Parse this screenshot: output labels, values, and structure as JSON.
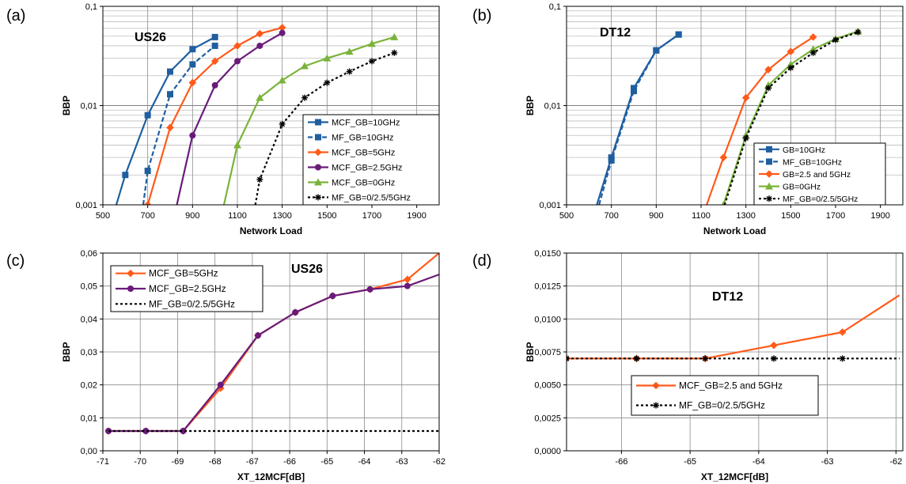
{
  "chart_data": [
    {
      "panel": "(a)",
      "type": "line",
      "title": "US26",
      "xlabel": "Network Load",
      "ylabel": "BBP",
      "yscale": "log",
      "xlim": [
        500,
        2000
      ],
      "ylim": [
        0.001,
        0.1
      ],
      "x_ticks": [
        "500",
        "700",
        "900",
        "1100",
        "1300",
        "1500",
        "1700",
        "1900"
      ],
      "y_ticks": [
        "0,001",
        "0,01",
        "0,1"
      ],
      "grid": true,
      "legend": "bottom-right",
      "series": [
        {
          "name": "MCF_GB=10GHz",
          "color": "#1f5fa0",
          "dash": "solid",
          "marker": "square",
          "x": [
            560,
            600,
            700,
            800,
            900,
            1000
          ],
          "y": [
            0.001,
            0.002,
            0.008,
            0.022,
            0.037,
            0.049
          ],
          "marked": [
            false,
            true,
            true,
            true,
            true,
            true
          ]
        },
        {
          "name": "MF_GB=10GHz",
          "color": "#1f5fa0",
          "dash": "dash",
          "marker": "square",
          "x": [
            680,
            700,
            800,
            900,
            1000
          ],
          "y": [
            0.001,
            0.0022,
            0.013,
            0.026,
            0.04
          ],
          "marked": [
            false,
            true,
            true,
            true,
            true
          ]
        },
        {
          "name": "MCF_GB=5GHz",
          "color": "#ff5a1a",
          "dash": "solid",
          "marker": "diamond",
          "x": [
            700,
            800,
            900,
            1000,
            1100,
            1200,
            1300
          ],
          "y": [
            0.001,
            0.006,
            0.017,
            0.028,
            0.04,
            0.053,
            0.061
          ],
          "marked": [
            true,
            true,
            true,
            true,
            true,
            true,
            true
          ]
        },
        {
          "name": "MCF_GB=2.5GHz",
          "color": "#6a1b7a",
          "dash": "solid",
          "marker": "circle",
          "x": [
            830,
            900,
            1000,
            1100,
            1200,
            1300
          ],
          "y": [
            0.001,
            0.005,
            0.016,
            0.028,
            0.04,
            0.054
          ],
          "marked": [
            false,
            true,
            true,
            true,
            true,
            true
          ]
        },
        {
          "name": "MCF_GB=0GHz",
          "color": "#7bb33a",
          "dash": "solid",
          "marker": "triangle",
          "x": [
            1040,
            1100,
            1200,
            1300,
            1400,
            1500,
            1600,
            1700,
            1800
          ],
          "y": [
            0.001,
            0.004,
            0.012,
            0.018,
            0.025,
            0.03,
            0.035,
            0.042,
            0.049
          ],
          "marked": [
            false,
            true,
            true,
            true,
            true,
            true,
            true,
            true,
            true
          ]
        },
        {
          "name": "MF_GB=0/2.5/5GHz",
          "color": "#000000",
          "dash": "dot",
          "marker": "asterisk",
          "x": [
            1180,
            1200,
            1300,
            1400,
            1500,
            1600,
            1700,
            1800
          ],
          "y": [
            0.001,
            0.0018,
            0.0065,
            0.012,
            0.017,
            0.022,
            0.028,
            0.034
          ],
          "marked": [
            false,
            true,
            true,
            true,
            true,
            true,
            true,
            true
          ]
        }
      ]
    },
    {
      "panel": "(b)",
      "type": "line",
      "title": "DT12",
      "xlabel": "Network Load",
      "ylabel": "BBP",
      "yscale": "log",
      "xlim": [
        500,
        2000
      ],
      "ylim": [
        0.001,
        0.1
      ],
      "x_ticks": [
        "500",
        "700",
        "900",
        "1100",
        "1300",
        "1500",
        "1700",
        "1900"
      ],
      "y_ticks": [
        "0,001",
        "0,01",
        "0,1"
      ],
      "grid": true,
      "legend": "bottom-right",
      "series": [
        {
          "name": "GB=10GHz",
          "color": "#1f5fa0",
          "dash": "solid",
          "marker": "square",
          "x": [
            635,
            700,
            800,
            900,
            1000
          ],
          "y": [
            0.001,
            0.003,
            0.015,
            0.036,
            0.052
          ],
          "marked": [
            false,
            true,
            true,
            true,
            true
          ]
        },
        {
          "name": "MF_GB=10GHz",
          "color": "#1f5fa0",
          "dash": "dash",
          "marker": "square",
          "x": [
            645,
            700,
            800,
            900,
            1000
          ],
          "y": [
            0.001,
            0.0028,
            0.014,
            0.036,
            0.052
          ],
          "marked": [
            false,
            true,
            true,
            true,
            true
          ]
        },
        {
          "name": "GB=2.5 and 5GHz",
          "color": "#ff5a1a",
          "dash": "solid",
          "marker": "diamond",
          "x": [
            1125,
            1200,
            1300,
            1400,
            1500,
            1600
          ],
          "y": [
            0.001,
            0.003,
            0.012,
            0.023,
            0.035,
            0.049
          ],
          "marked": [
            false,
            true,
            true,
            true,
            true,
            true
          ]
        },
        {
          "name": "GB=0GHz",
          "color": "#7bb33a",
          "dash": "solid",
          "marker": "triangle",
          "x": [
            1200,
            1300,
            1400,
            1500,
            1600,
            1700,
            1800
          ],
          "y": [
            0.001,
            0.005,
            0.016,
            0.026,
            0.037,
            0.047,
            0.056
          ],
          "marked": [
            true,
            true,
            true,
            true,
            true,
            true,
            true
          ]
        },
        {
          "name": "MF_GB=0/2.5/5GHz",
          "color": "#000000",
          "dash": "dot",
          "marker": "asterisk",
          "x": [
            1205,
            1300,
            1400,
            1500,
            1600,
            1700,
            1800
          ],
          "y": [
            0.001,
            0.0047,
            0.015,
            0.024,
            0.034,
            0.046,
            0.055
          ],
          "marked": [
            false,
            true,
            true,
            true,
            true,
            true,
            true
          ]
        }
      ]
    },
    {
      "panel": "(c)",
      "type": "line",
      "title": "US26",
      "xlabel": "XT_12MCF[dB]",
      "ylabel": "BBP",
      "yscale": "linear",
      "xlim": [
        -71,
        -62
      ],
      "ylim": [
        0,
        0.06
      ],
      "x_ticks": [
        "-71",
        "-70",
        "-69",
        "-68",
        "-67",
        "-66",
        "-65",
        "-64",
        "-63",
        "-62"
      ],
      "y_ticks": [
        "0,00",
        "0,01",
        "0,02",
        "0,03",
        "0,04",
        "0,05",
        "0,06"
      ],
      "grid": true,
      "legend": "top-left",
      "series": [
        {
          "name": "MCF_GB=5GHz",
          "color": "#ff5a1a",
          "dash": "solid",
          "marker": "diamond",
          "x": [
            -70.85,
            -69.85,
            -68.85,
            -67.85,
            -66.85,
            -65.85,
            -64.85,
            -63.85,
            -62.85,
            -62
          ],
          "y": [
            0.006,
            0.006,
            0.006,
            0.019,
            0.035,
            0.042,
            0.047,
            0.049,
            0.052,
            0.06
          ],
          "marked": [
            true,
            true,
            true,
            true,
            true,
            true,
            true,
            true,
            true,
            false
          ]
        },
        {
          "name": "MCF_GB=2.5GHz",
          "color": "#6a1b7a",
          "dash": "solid",
          "marker": "circle",
          "x": [
            -70.85,
            -69.85,
            -68.85,
            -67.85,
            -66.85,
            -65.85,
            -64.85,
            -63.85,
            -62.85,
            -62
          ],
          "y": [
            0.006,
            0.006,
            0.006,
            0.02,
            0.035,
            0.042,
            0.047,
            0.049,
            0.05,
            0.0535
          ],
          "marked": [
            true,
            true,
            true,
            true,
            true,
            true,
            true,
            true,
            true,
            false
          ]
        },
        {
          "name": "MF_GB=0/2.5/5GHz",
          "color": "#000000",
          "dash": "dot",
          "marker": "none",
          "x": [
            -70.85,
            -62
          ],
          "y": [
            0.006,
            0.006
          ],
          "marked": [
            false,
            false
          ]
        }
      ]
    },
    {
      "panel": "(d)",
      "type": "line",
      "title": "DT12",
      "xlabel": "XT_12MCF[dB]",
      "ylabel": "BBP",
      "yscale": "linear",
      "xlim": [
        -66.8,
        -61.9
      ],
      "ylim": [
        0,
        0.015
      ],
      "x_ticks": [
        "-66",
        "-65",
        "-64",
        "-63",
        "-62"
      ],
      "x_tick_values": [
        -66,
        -65,
        -64,
        -63,
        -62
      ],
      "y_ticks": [
        "0,0000",
        "0,0025",
        "0,0050",
        "0,0075",
        "0,0100",
        "0,0125",
        "0,0150"
      ],
      "grid": true,
      "legend": "bottom-center",
      "series": [
        {
          "name": "MCF_GB=2.5 and 5GHz",
          "color": "#ff5a1a",
          "dash": "solid",
          "marker": "diamond",
          "x": [
            -66.8,
            -65.78,
            -64.78,
            -63.78,
            -62.78,
            -61.95
          ],
          "y": [
            0.007,
            0.007,
            0.007,
            0.008,
            0.009,
            0.0118
          ],
          "marked": [
            true,
            true,
            true,
            true,
            true,
            false
          ]
        },
        {
          "name": "MF_GB=0/2.5/5GHz",
          "color": "#000000",
          "dash": "dot",
          "marker": "asterisk",
          "x": [
            -66.8,
            -65.78,
            -64.78,
            -63.78,
            -62.78,
            -61.95
          ],
          "y": [
            0.007,
            0.007,
            0.007,
            0.007,
            0.007,
            0.007
          ],
          "marked": [
            true,
            true,
            true,
            true,
            true,
            false
          ]
        }
      ]
    }
  ],
  "figure": {
    "panel_labels": [
      "(a)",
      "(b)",
      "(c)",
      "(d)"
    ]
  }
}
